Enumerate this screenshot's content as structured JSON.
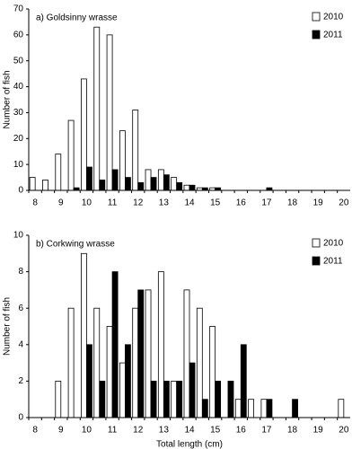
{
  "chart_data": [
    {
      "type": "bar",
      "title": "a) Goldsinny wrasse",
      "ylabel": "Number of fish",
      "categories": [
        "8",
        null,
        "9",
        null,
        "10",
        null,
        "11",
        null,
        "12",
        null,
        "13",
        null,
        "14",
        null,
        "15",
        null,
        "16",
        null,
        "17",
        null,
        "18",
        null,
        "19",
        null,
        "20"
      ],
      "series": [
        {
          "name": "2010",
          "color": "#ffffff",
          "values": [
            5,
            4,
            14,
            27,
            43,
            63,
            60,
            23,
            31,
            8,
            8,
            5,
            2,
            1,
            1,
            0,
            0,
            0,
            0,
            0,
            0,
            0,
            0,
            0,
            0
          ]
        },
        {
          "name": "2011",
          "color": "#000000",
          "values": [
            0,
            0,
            0,
            1,
            9,
            4,
            8,
            5,
            3,
            5,
            6,
            3,
            2,
            1,
            1,
            0,
            0,
            0,
            1,
            0,
            0,
            0,
            0,
            0,
            0
          ]
        }
      ],
      "ylim": [
        0,
        70
      ],
      "yticks": [
        0,
        10,
        20,
        30,
        40,
        50,
        60,
        70
      ],
      "legend": "upper right"
    },
    {
      "type": "bar",
      "title": "b) Corkwing wrasse",
      "ylabel": "Number of fish",
      "xlabel": "Total length (cm)",
      "categories": [
        "8",
        null,
        "9",
        null,
        "10",
        null,
        "11",
        null,
        "12",
        null,
        "13",
        null,
        "14",
        null,
        "15",
        null,
        "16",
        null,
        "17",
        null,
        "18",
        null,
        "19",
        null,
        "20"
      ],
      "series": [
        {
          "name": "2010",
          "color": "#ffffff",
          "values": [
            0,
            0,
            2,
            6,
            9,
            6,
            5,
            3,
            6,
            7,
            8,
            2,
            7,
            6,
            5,
            0,
            1,
            1,
            1,
            0,
            0,
            0,
            0,
            0,
            1
          ]
        },
        {
          "name": "2011",
          "color": "#000000",
          "values": [
            0,
            0,
            0,
            0,
            4,
            2,
            8,
            4,
            7,
            2,
            2,
            2,
            3,
            1,
            2,
            2,
            4,
            0,
            1,
            0,
            1,
            0,
            0,
            0,
            0
          ]
        }
      ],
      "ylim": [
        0,
        10
      ],
      "yticks": [
        0,
        2,
        4,
        6,
        8,
        10
      ],
      "legend": "upper right"
    }
  ]
}
